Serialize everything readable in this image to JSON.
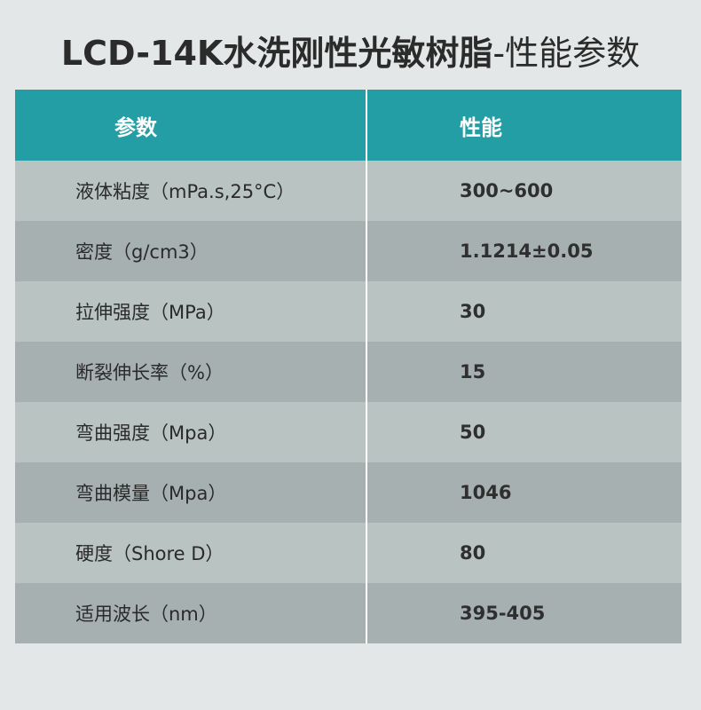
{
  "title": {
    "bold": "LCD-14K水洗刚性光敏树脂",
    "normal": "-性能参数"
  },
  "table": {
    "headers": [
      "参数",
      "性能"
    ],
    "rows": [
      {
        "param": "液体粘度（mPa.s,25°C）",
        "value": "300~600"
      },
      {
        "param": "密度（g/cm3）",
        "value": "1.1214±0.05"
      },
      {
        "param": "拉伸强度（MPa）",
        "value": "30"
      },
      {
        "param": "断裂伸长率（%）",
        "value": "15"
      },
      {
        "param": "弯曲强度（Mpa）",
        "value": "50"
      },
      {
        "param": "弯曲模量（Mpa）",
        "value": "1046"
      },
      {
        "param": "硬度（Shore D）",
        "value": "80"
      },
      {
        "param": "适用波长（nm）",
        "value": "395-405"
      }
    ]
  },
  "colors": {
    "header_bg": "#239ea5",
    "row_light": "#b8c3c2",
    "row_dark": "#a6b0b1",
    "page_bg": "#e4e7e7"
  }
}
